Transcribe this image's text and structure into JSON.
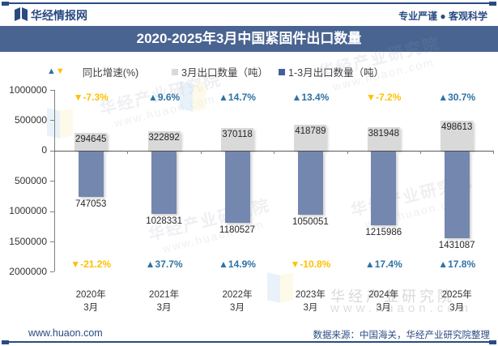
{
  "header": {
    "brand": "华经情报网",
    "tagline": "专业严谨 ● 客观科学"
  },
  "title": "2020-2025年3月中国紧固件出口数量",
  "legend": {
    "growth": "同比增速(%)",
    "march": "3月出口数量（吨）",
    "cumulative": "1-3月出口数量（吨）"
  },
  "chart_data": {
    "type": "bar",
    "title": "2020-2025年3月中国紧固件出口数量",
    "xlabel": "",
    "ylabel": "",
    "categories": [
      [
        "2020年",
        "3月"
      ],
      [
        "2021年",
        "3月"
      ],
      [
        "2022年",
        "3月"
      ],
      [
        "2023年",
        "3月"
      ],
      [
        "2024年",
        "3月"
      ],
      [
        "2025年",
        "3月"
      ]
    ],
    "series": [
      {
        "name": "3月出口数量（吨）",
        "direction": "up",
        "color": "#d9d9d9",
        "values": [
          294645,
          322892,
          370118,
          418789,
          381948,
          498613
        ]
      },
      {
        "name": "1-3月出口数量（吨）",
        "direction": "down",
        "color": "#7487ae",
        "values": [
          747053,
          1028331,
          1180527,
          1050051,
          1215986,
          1431087
        ]
      },
      {
        "name": "同比增速(%) 3月（上方标注）",
        "values": [
          -7.3,
          9.6,
          14.7,
          13.4,
          -7.2,
          30.7
        ]
      },
      {
        "name": "同比增速(%) 1-3月（下方标注）",
        "values": [
          -21.2,
          37.7,
          14.9,
          -10.8,
          17.4,
          17.8
        ]
      }
    ],
    "yticks": [
      "1000000",
      "500000",
      "0",
      "500000",
      "1000000",
      "1500000",
      "2000000"
    ],
    "ylim": [
      -2000000,
      1000000
    ],
    "grid": "off",
    "legend_position": "top"
  },
  "colors": {
    "positive": "#2e73a4",
    "negative": "#ffc000",
    "bar_march": "#d9d9d9",
    "bar_cumulative": "#7487ae",
    "banner": "#4a6492",
    "navy": "#2a4b82"
  },
  "watermark": {
    "text1": "华经产业研究院",
    "text2": "www.huaon.com"
  },
  "footer": {
    "website": "www.huaon.com",
    "source": "数据来源：中国海关，华经产业研究院整理"
  }
}
